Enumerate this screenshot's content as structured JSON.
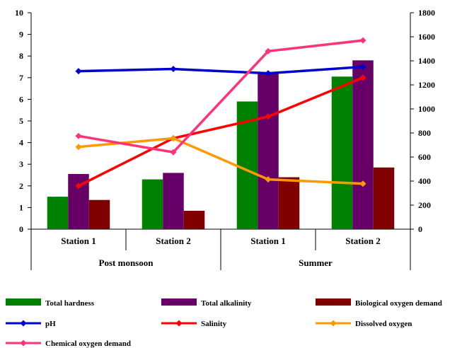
{
  "chart_data": {
    "type": "bar",
    "groups": [
      "Post monsoon",
      "Summer"
    ],
    "categories": [
      "Station 1",
      "Station 2",
      "Station 1",
      "Station 2"
    ],
    "left_axis": {
      "ylim": [
        0,
        10
      ],
      "ticks": [
        "0",
        "1",
        "2",
        "3",
        "4",
        "5",
        "6",
        "7",
        "8",
        "9",
        "10"
      ]
    },
    "right_axis": {
      "ylim": [
        0,
        1800
      ],
      "ticks": [
        "0",
        "200",
        "400",
        "600",
        "800",
        "1000",
        "1200",
        "1400",
        "1600",
        "1800"
      ]
    },
    "bar_series": [
      {
        "name": "Total hardness",
        "color": "#008000",
        "values": [
          1.5,
          2.3,
          5.9,
          7.05
        ]
      },
      {
        "name": "Total alkalinity",
        "color": "#660066",
        "values": [
          2.55,
          2.6,
          7.2,
          7.8
        ]
      },
      {
        "name": "Biological oxygen demand",
        "color": "#800000",
        "values": [
          1.35,
          0.85,
          2.4,
          2.85
        ]
      }
    ],
    "line_series": [
      {
        "name": "pH",
        "color": "#0000CC",
        "axis": "left",
        "values": [
          7.3,
          7.4,
          7.2,
          7.5
        ]
      },
      {
        "name": "Salinity",
        "color": "#FF0000",
        "axis": "left",
        "values": [
          2.0,
          4.2,
          5.2,
          7.0
        ]
      },
      {
        "name": "Dissolved oxygen",
        "color": "#FF9900",
        "axis": "left",
        "values": [
          3.8,
          4.2,
          2.3,
          2.1
        ]
      },
      {
        "name": "Chemical oxygen demand",
        "color": "#FF3377",
        "axis": "right",
        "values": [
          775,
          640,
          1480,
          1570
        ]
      }
    ]
  }
}
